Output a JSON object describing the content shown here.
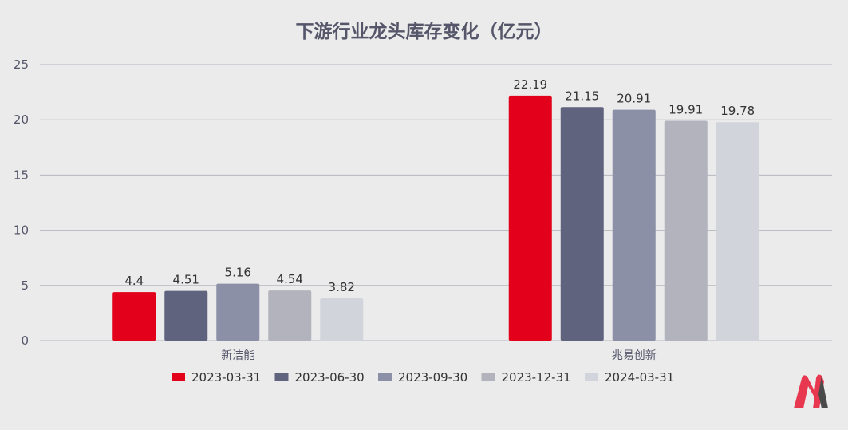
{
  "chart_data": {
    "type": "bar",
    "title": "下游行业龙头库存变化（亿元）",
    "categories": [
      "新洁能",
      "兆易创新"
    ],
    "series": [
      {
        "name": "2023-03-31",
        "color": "#e2001a",
        "values": [
          4.4,
          22.19
        ],
        "labels": [
          "4.4",
          "22.19"
        ]
      },
      {
        "name": "2023-06-30",
        "color": "#5f637e",
        "values": [
          4.51,
          21.15
        ],
        "labels": [
          "4.51",
          "21.15"
        ]
      },
      {
        "name": "2023-09-30",
        "color": "#8c90a7",
        "values": [
          5.16,
          20.91
        ],
        "labels": [
          "5.16",
          "20.91"
        ]
      },
      {
        "name": "2023-12-31",
        "color": "#b2b3bd",
        "values": [
          4.54,
          19.91
        ],
        "labels": [
          "4.54",
          "19.91"
        ]
      },
      {
        "name": "2024-03-31",
        "color": "#d2d4db",
        "values": [
          3.82,
          19.78
        ],
        "labels": [
          "3.82",
          "19.78"
        ]
      }
    ],
    "yticks": [
      "0",
      "5",
      "10",
      "15",
      "20",
      "25"
    ],
    "ylim": [
      0,
      25
    ],
    "xlabel": "",
    "ylabel": "",
    "grid": true,
    "legend_position": "bottom"
  },
  "colors": {
    "background": "#ebebeb",
    "gridline": "#b6b7c0",
    "logo_red": "#e8384f",
    "logo_dark": "#4a4a4a"
  },
  "logo": {
    "icon": "m-brand-logo-icon"
  }
}
